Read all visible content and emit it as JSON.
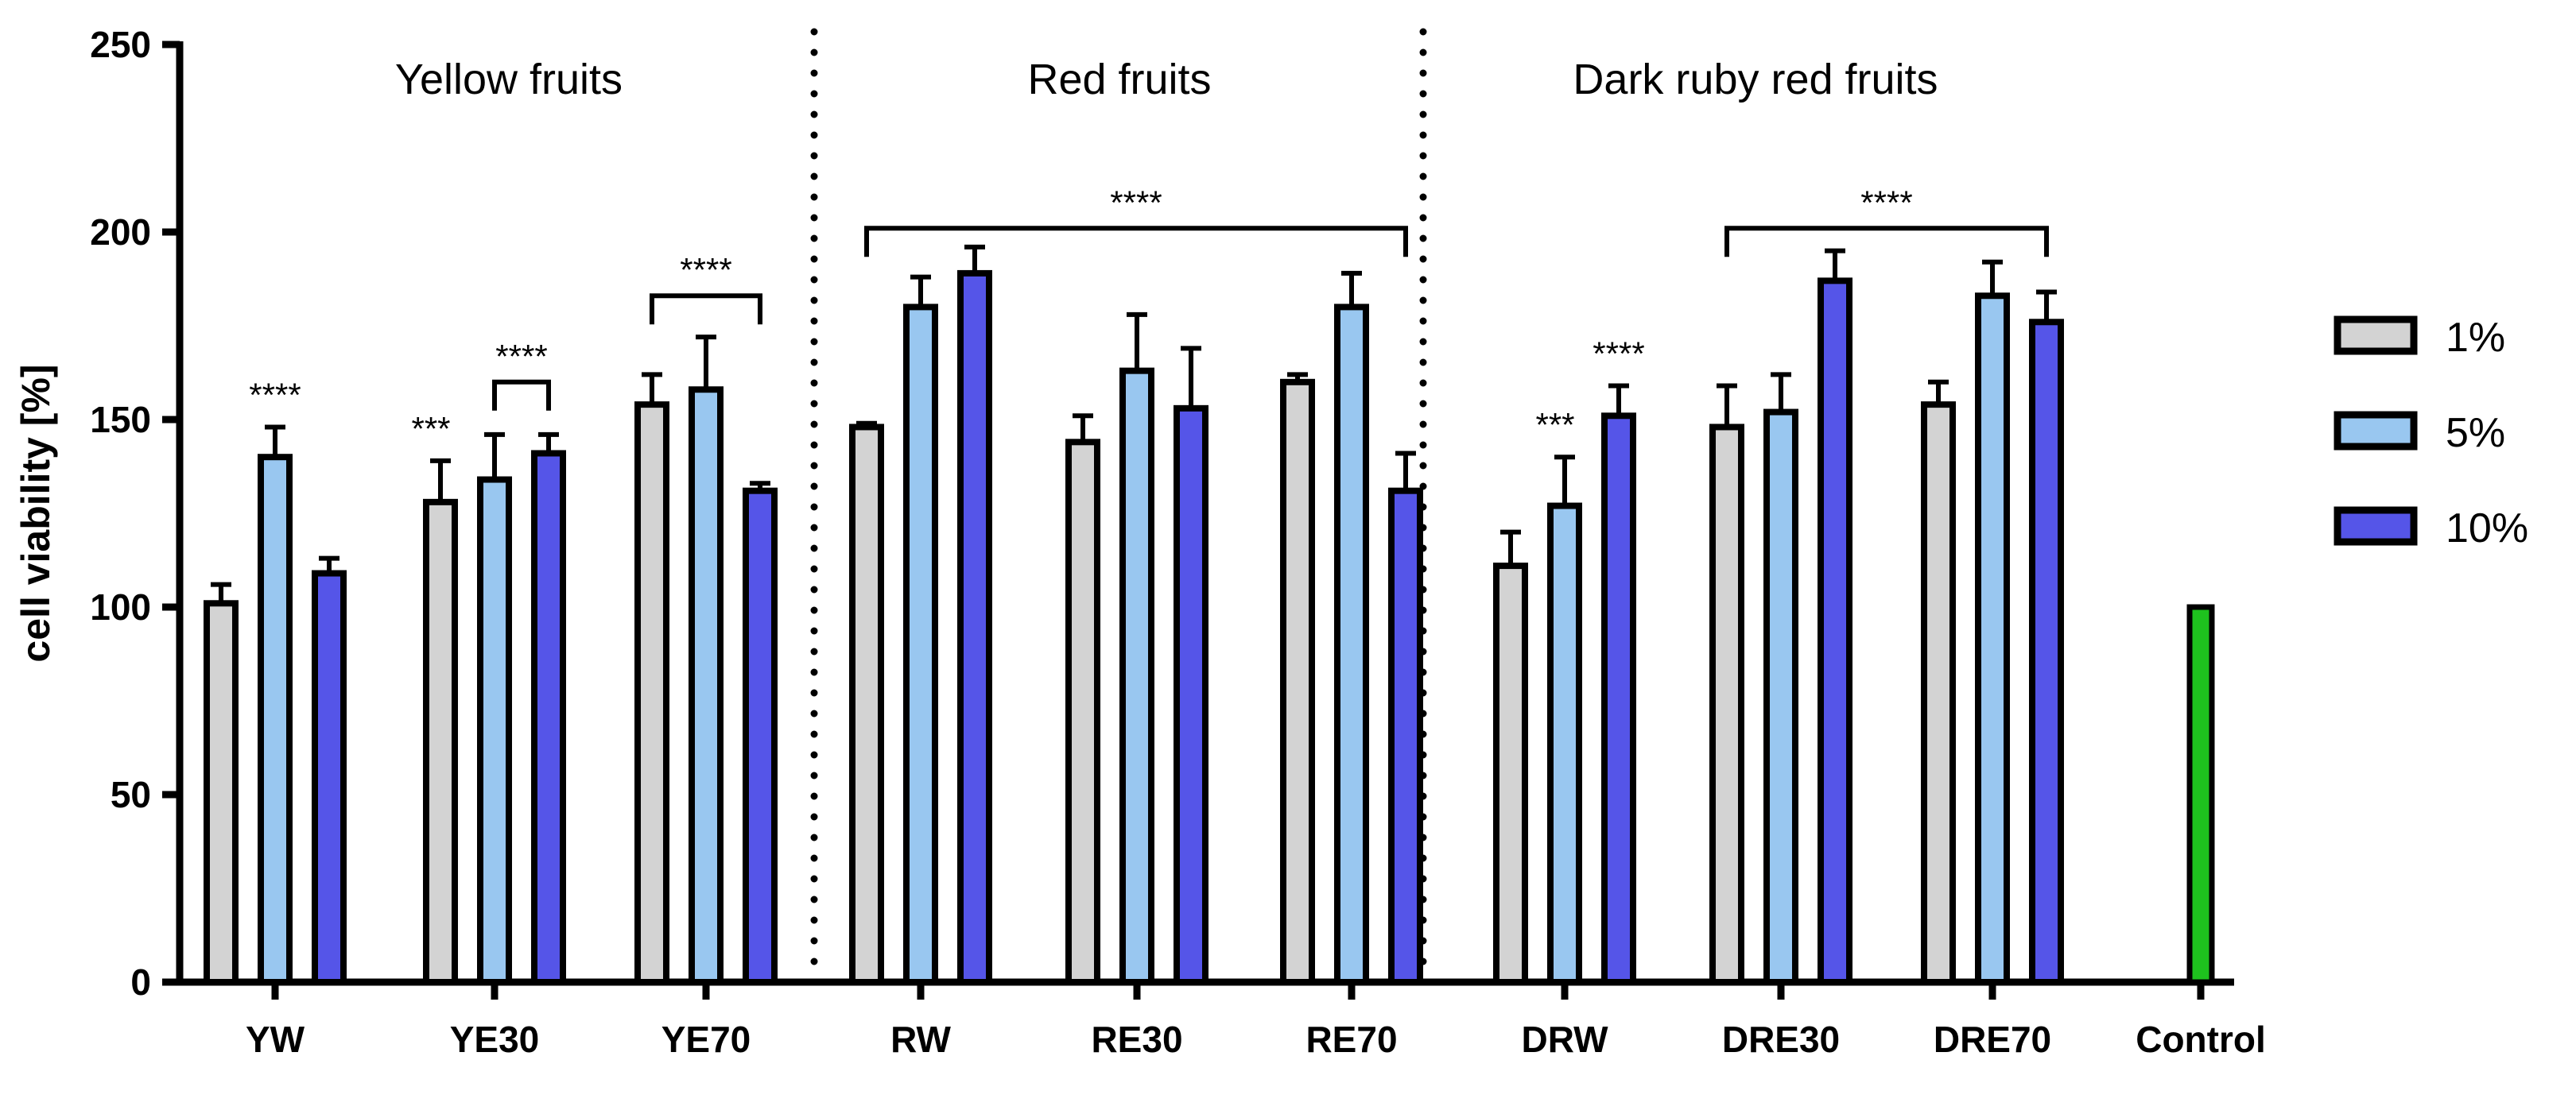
{
  "chart_data": {
    "type": "bar",
    "ylabel": "cell viability [%]",
    "xlabel": "",
    "ylim": [
      0,
      250
    ],
    "yticks": [
      0,
      50,
      100,
      150,
      200,
      250
    ],
    "categories": [
      "YW",
      "YE30",
      "YE70",
      "RW",
      "RE30",
      "RE70",
      "DRW",
      "DRE30",
      "DRE70",
      "Control"
    ],
    "series": [
      {
        "name": "1%",
        "color": "#d3d3d3",
        "values": [
          101,
          128,
          154,
          148,
          144,
          160,
          111,
          148,
          154,
          null
        ],
        "errors": [
          5,
          11,
          8,
          1,
          7,
          2,
          9,
          11,
          6,
          null
        ]
      },
      {
        "name": "5%",
        "color": "#99c7f0",
        "values": [
          140,
          134,
          158,
          180,
          163,
          180,
          127,
          152,
          183,
          null
        ],
        "errors": [
          8,
          12,
          14,
          8,
          15,
          9,
          13,
          10,
          9,
          null
        ]
      },
      {
        "name": "10%",
        "color": "#5555e8",
        "values": [
          109,
          141,
          131,
          189,
          153,
          131,
          151,
          187,
          176,
          null
        ],
        "errors": [
          4,
          5,
          2,
          7,
          16,
          10,
          8,
          8,
          8,
          null
        ]
      }
    ],
    "control": {
      "name": "Control",
      "value": 100,
      "color": "#1ec21e"
    },
    "group_labels": [
      "Yellow fruits",
      "Red fruits",
      "Dark ruby red fruits"
    ],
    "significance": [
      {
        "text": "****",
        "category": "YW",
        "series": "5%"
      },
      {
        "text": "***",
        "category": "YE30",
        "series": "1%"
      },
      {
        "text": "****",
        "bracket": [
          "YE30:5%",
          "YE30:10%"
        ],
        "y": 160
      },
      {
        "text": "****",
        "bracket": [
          "YE70:1%",
          "YE70:10%"
        ],
        "y": 183
      },
      {
        "text": "****",
        "bracket": [
          "RW:1%",
          "RE70:10%"
        ],
        "y": 201
      },
      {
        "text": "***",
        "category": "DRW",
        "series": "5%"
      },
      {
        "text": "****",
        "category": "DRW",
        "series": "10%"
      },
      {
        "text": "****",
        "bracket": [
          "DRE30:1%",
          "DRE70:10%"
        ],
        "y": 201
      }
    ],
    "legend": [
      "1%",
      "5%",
      "10%"
    ],
    "legend_position": "right"
  }
}
